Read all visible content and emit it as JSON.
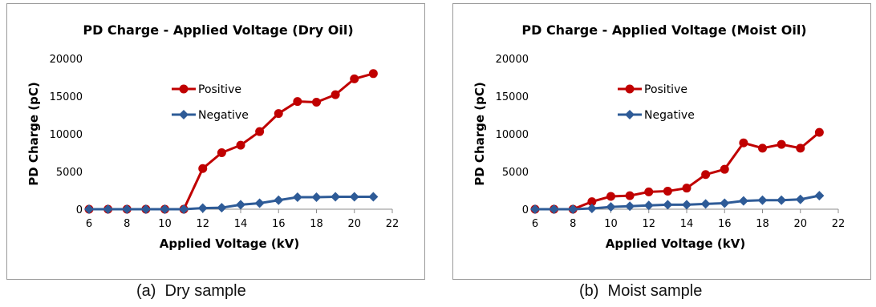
{
  "captions": [
    "(a)  Dry sample",
    "(b)  Moist sample"
  ],
  "chart_data": [
    {
      "type": "line",
      "title": "PD Charge - Applied Voltage (Dry Oil)",
      "xlabel": "Applied Voltage (kV)",
      "ylabel": "PD Charge (pC)",
      "xlim": [
        6,
        22
      ],
      "ylim": [
        0,
        20000
      ],
      "xticks": [
        6,
        8,
        10,
        12,
        14,
        16,
        18,
        20,
        22
      ],
      "yticks": [
        0,
        5000,
        10000,
        15000,
        20000
      ],
      "grid": false,
      "legend_position": "upper-center",
      "x": [
        6,
        7,
        8,
        9,
        10,
        11,
        12,
        13,
        14,
        15,
        16,
        17,
        18,
        19,
        20,
        21
      ],
      "series": [
        {
          "name": "Positive",
          "color": "#c00000",
          "marker": "circle",
          "values": [
            0,
            0,
            0,
            0,
            0,
            0,
            5400,
            7500,
            8500,
            10300,
            12700,
            14300,
            14200,
            15200,
            17300,
            18000
          ]
        },
        {
          "name": "Negative",
          "color": "#2e5b97",
          "marker": "diamond",
          "values": [
            0,
            0,
            0,
            0,
            0,
            0,
            150,
            200,
            600,
            800,
            1200,
            1600,
            1600,
            1650,
            1650,
            1650
          ]
        }
      ]
    },
    {
      "type": "line",
      "title": "PD Charge - Applied Voltage (Moist Oil)",
      "xlabel": "Applied Voltage (kV)",
      "ylabel": "PD Charge (pC)",
      "xlim": [
        6,
        22
      ],
      "ylim": [
        0,
        20000
      ],
      "xticks": [
        6,
        8,
        10,
        12,
        14,
        16,
        18,
        20,
        22
      ],
      "yticks": [
        0,
        5000,
        10000,
        15000,
        20000
      ],
      "grid": false,
      "legend_position": "upper-center",
      "x": [
        6,
        7,
        8,
        9,
        10,
        11,
        12,
        13,
        14,
        15,
        16,
        17,
        18,
        19,
        20,
        21
      ],
      "series": [
        {
          "name": "Positive",
          "color": "#c00000",
          "marker": "circle",
          "values": [
            0,
            0,
            0,
            1000,
            1700,
            1800,
            2300,
            2400,
            2800,
            4600,
            5300,
            8800,
            8100,
            8600,
            8100,
            10200
          ]
        },
        {
          "name": "Negative",
          "color": "#2e5b97",
          "marker": "diamond",
          "values": [
            0,
            0,
            0,
            100,
            300,
            400,
            500,
            600,
            600,
            700,
            800,
            1100,
            1200,
            1200,
            1300,
            1800
          ]
        }
      ]
    }
  ]
}
